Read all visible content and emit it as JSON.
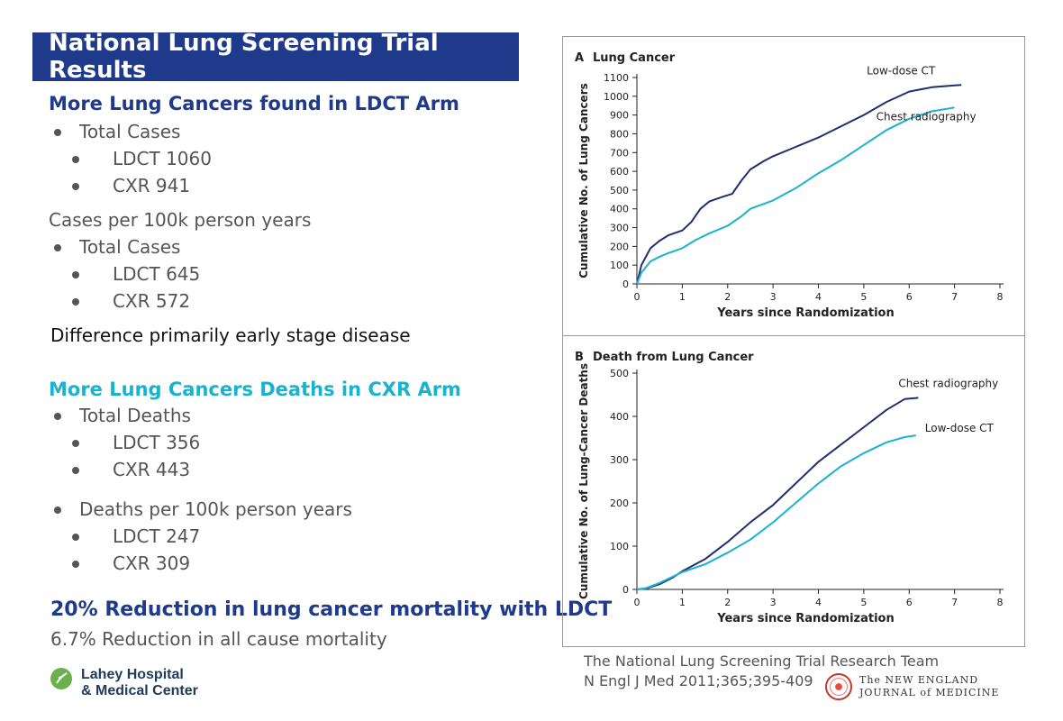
{
  "header": {
    "title": "National Lung Screening Trial Results"
  },
  "left_panel": {
    "section1_heading": "More Lung Cancers found in LDCT Arm",
    "section1_total_label": "Total Cases",
    "section1_total_ldct": "LDCT 1060",
    "section1_total_cxr": "CXR 941",
    "section1_rate_label": "Cases per 100k person years",
    "section1_rate_total_label": "Total Cases",
    "section1_rate_ldct": "LDCT 645",
    "section1_rate_cxr": "CXR 572",
    "section1_note": "Difference primarily early stage disease",
    "section2_heading": "More Lung Cancers Deaths in CXR Arm",
    "section2_total_label": "Total Deaths",
    "section2_total_ldct": "LDCT 356",
    "section2_total_cxr": "CXR 443",
    "section2_rate_label": "Deaths per 100k person years",
    "section2_rate_ldct": "LDCT 247",
    "section2_rate_cxr": "CXR 309",
    "conclusion": "20% Reduction in lung cancer mortality with LDCT",
    "conclusion_sub": "6.7% Reduction in all cause mortality"
  },
  "logo": {
    "line1": "Lahey Hospital",
    "line2": "& Medical Center"
  },
  "citation": {
    "line1": "The National Lung Screening Trial Research Team",
    "line2": "N Engl J Med 2011;365;395-409",
    "journal_line1": "The NEW ENGLAND",
    "journal_line2": "JOURNAL of MEDICINE"
  },
  "colors": {
    "navy": "#1f3a8a",
    "cyan": "#1ab3cf",
    "text_gray": "#555555"
  },
  "chart_data": [
    {
      "type": "line",
      "panel_letter": "A",
      "title": "Lung Cancer",
      "xlabel": "Years since Randomization",
      "ylabel": "Cumulative No. of Lung Cancers",
      "xlim": [
        0,
        8
      ],
      "ylim": [
        0,
        1100
      ],
      "x_ticks": [
        0,
        1,
        2,
        3,
        4,
        5,
        6,
        7,
        8
      ],
      "y_ticks": [
        0,
        100,
        200,
        300,
        400,
        500,
        600,
        700,
        800,
        900,
        1000,
        1100
      ],
      "grid": false,
      "series": [
        {
          "name": "Low-dose CT",
          "color": "#1f2f6e",
          "points": [
            [
              0,
              0
            ],
            [
              0.1,
              100
            ],
            [
              0.3,
              190
            ],
            [
              0.5,
              230
            ],
            [
              0.7,
              260
            ],
            [
              1.0,
              285
            ],
            [
              1.2,
              330
            ],
            [
              1.4,
              400
            ],
            [
              1.6,
              440
            ],
            [
              1.9,
              465
            ],
            [
              2.1,
              480
            ],
            [
              2.3,
              550
            ],
            [
              2.5,
              610
            ],
            [
              2.8,
              655
            ],
            [
              3.0,
              680
            ],
            [
              3.5,
              730
            ],
            [
              4.0,
              780
            ],
            [
              4.5,
              840
            ],
            [
              5.0,
              900
            ],
            [
              5.5,
              970
            ],
            [
              6.0,
              1025
            ],
            [
              6.5,
              1048
            ],
            [
              7.0,
              1058
            ],
            [
              7.15,
              1060
            ]
          ]
        },
        {
          "name": "Chest radiography",
          "color": "#1ab3cf",
          "points": [
            [
              0,
              0
            ],
            [
              0.1,
              60
            ],
            [
              0.3,
              120
            ],
            [
              0.5,
              145
            ],
            [
              0.7,
              165
            ],
            [
              1.0,
              190
            ],
            [
              1.3,
              235
            ],
            [
              1.6,
              270
            ],
            [
              2.0,
              310
            ],
            [
              2.3,
              360
            ],
            [
              2.5,
              400
            ],
            [
              3.0,
              445
            ],
            [
              3.5,
              510
            ],
            [
              4.0,
              590
            ],
            [
              4.5,
              660
            ],
            [
              5.0,
              740
            ],
            [
              5.5,
              820
            ],
            [
              6.0,
              880
            ],
            [
              6.5,
              920
            ],
            [
              7.0,
              940
            ]
          ]
        }
      ]
    },
    {
      "type": "line",
      "panel_letter": "B",
      "title": "Death from Lung Cancer",
      "xlabel": "Years since Randomization",
      "ylabel": "Cumulative No. of Lung-Cancer Deaths",
      "xlim": [
        0,
        8
      ],
      "ylim": [
        0,
        500
      ],
      "x_ticks": [
        0,
        1,
        2,
        3,
        4,
        5,
        6,
        7,
        8
      ],
      "y_ticks": [
        0,
        100,
        200,
        300,
        400,
        500
      ],
      "grid": false,
      "series": [
        {
          "name": "Chest radiography",
          "color": "#1f2f6e",
          "points": [
            [
              0,
              0
            ],
            [
              0.2,
              2
            ],
            [
              0.5,
              12
            ],
            [
              0.8,
              28
            ],
            [
              1.0,
              42
            ],
            [
              1.5,
              70
            ],
            [
              2.0,
              110
            ],
            [
              2.5,
              155
            ],
            [
              3.0,
              195
            ],
            [
              3.5,
              245
            ],
            [
              4.0,
              295
            ],
            [
              4.5,
              335
            ],
            [
              5.0,
              375
            ],
            [
              5.5,
              415
            ],
            [
              5.9,
              440
            ],
            [
              6.2,
              443
            ]
          ]
        },
        {
          "name": "Low-dose CT",
          "color": "#1ab3cf",
          "points": [
            [
              0,
              0
            ],
            [
              0.2,
              3
            ],
            [
              0.5,
              15
            ],
            [
              0.8,
              30
            ],
            [
              1.0,
              40
            ],
            [
              1.5,
              58
            ],
            [
              2.0,
              85
            ],
            [
              2.5,
              115
            ],
            [
              3.0,
              155
            ],
            [
              3.5,
              200
            ],
            [
              4.0,
              245
            ],
            [
              4.5,
              285
            ],
            [
              5.0,
              315
            ],
            [
              5.5,
              340
            ],
            [
              5.9,
              352
            ],
            [
              6.15,
              356
            ]
          ]
        }
      ]
    }
  ]
}
